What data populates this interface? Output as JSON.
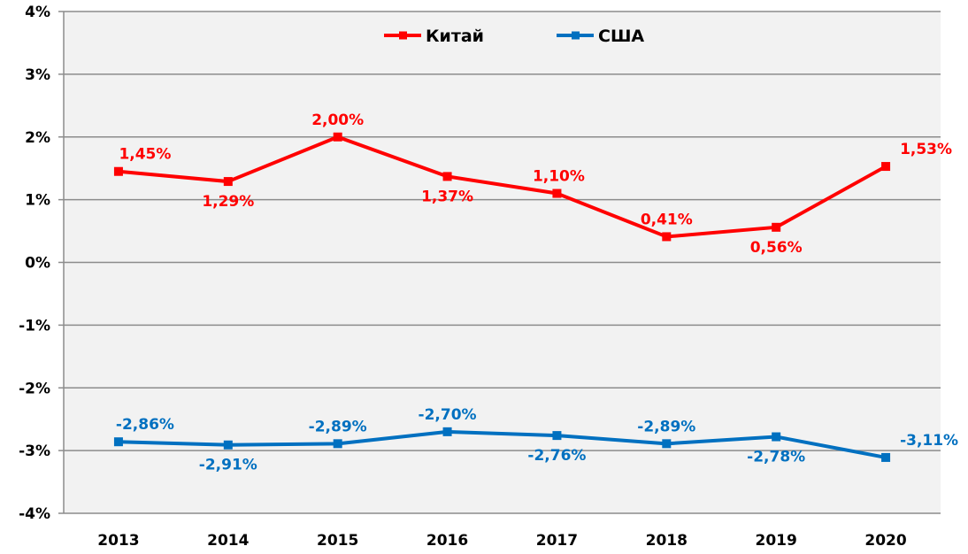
{
  "chart_data": {
    "type": "line",
    "title": "",
    "xlabel": "",
    "ylabel": "",
    "categories": [
      "2013",
      "2014",
      "2015",
      "2016",
      "2017",
      "2018",
      "2019",
      "2020"
    ],
    "ylim": [
      -4,
      4
    ],
    "yticks": [
      4,
      3,
      2,
      1,
      0,
      -1,
      -2,
      -3,
      -4
    ],
    "ytick_labels": [
      "4%",
      "3%",
      "2%",
      "1%",
      "0%",
      "-1%",
      "-2%",
      "-3%",
      "-4%"
    ],
    "grid": true,
    "legend_position": "top-center",
    "background_color": "#f2f2f2",
    "series": [
      {
        "name": "Китай",
        "color": "#ff0000",
        "values": [
          1.45,
          1.29,
          2.0,
          1.37,
          1.1,
          0.41,
          0.56,
          1.53
        ],
        "labels": [
          "1,45%",
          "1,29%",
          "2,00%",
          "1,37%",
          "1,10%",
          "0,41%",
          "0,56%",
          "1,53%"
        ],
        "label_positions": [
          "above",
          "below",
          "above",
          "below",
          "above",
          "above",
          "below",
          "above-right"
        ]
      },
      {
        "name": "США",
        "color": "#0070c0",
        "values": [
          -2.86,
          -2.91,
          -2.89,
          -2.7,
          -2.76,
          -2.89,
          -2.78,
          -3.11
        ],
        "labels": [
          "-2,86%",
          "-2,91%",
          "-2,89%",
          "-2,70%",
          "-2,76%",
          "-2,89%",
          "-2,78%",
          "-3,11%"
        ],
        "label_positions": [
          "above",
          "below",
          "above",
          "above",
          "below",
          "above",
          "below",
          "above-right"
        ]
      }
    ]
  }
}
